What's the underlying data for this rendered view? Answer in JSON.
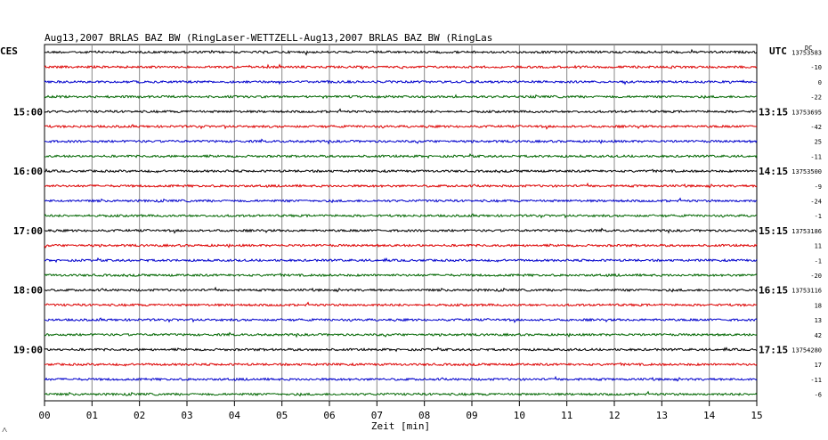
{
  "header": {
    "title": "Aug13,2007   BRLAS BAZ BW (RingLaser-WETTZELL-Aug13,2007   BRLAS BAZ BW (RingLas",
    "left_timezone": "CES",
    "right_timezone": "UTC",
    "dc_label": "DC"
  },
  "chart_data": {
    "type": "line",
    "title": "Aug13,2007   BRLAS BAZ BW (RingLaser-WETTZELL-Aug13,2007   BRLAS BAZ BW (RingLas",
    "xlabel": "Zeit [min]",
    "ylabel": "",
    "x_ticks": [
      "00",
      "01",
      "02",
      "03",
      "04",
      "05",
      "06",
      "07",
      "08",
      "09",
      "10",
      "11",
      "12",
      "13",
      "14",
      "15"
    ],
    "xlim": [
      0,
      15
    ],
    "grid": true,
    "trace_colors": [
      "#000000",
      "#dd0000",
      "#0000cc",
      "#006600"
    ],
    "rows_per_hour": 4,
    "left_hour_labels": [
      "15:00",
      "16:00",
      "17:00",
      "18:00",
      "19:00"
    ],
    "right_hour_labels": [
      "13:15",
      "14:15",
      "15:15",
      "16:15",
      "17:15"
    ],
    "dc_offsets": [
      "13753583",
      "-10",
      "0",
      "-22",
      "13753695",
      "-42",
      "25",
      "-11",
      "13753500",
      "-9",
      "-24",
      "-1",
      "13753186",
      "11",
      "-1",
      "-20",
      "13753116",
      "18",
      "13",
      "42",
      "13754280",
      "17",
      "-11",
      "-6"
    ]
  },
  "footer": {
    "corner_mark": "˄"
  }
}
